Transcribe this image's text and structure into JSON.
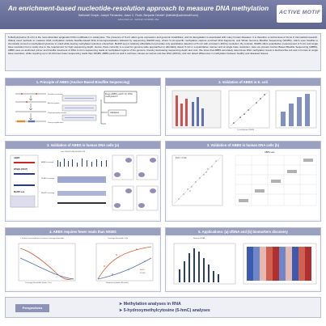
{
  "header": {
    "title": "An enrichment-based nucleotide-resolution approach to measure DNA methylation",
    "authors": "Nathaniel Chapin, Joseph Fernandez, Jason C. Poole, Benjamin Delatte* (bdelatte@activemotif.com)",
    "affiliation": "Active Motif, Inc., Carlsbad, CA 92008, USA",
    "logo_text": "ACTIVE MOTIF",
    "colors": {
      "header": "#6b7199",
      "panel_title": "#9aa0c0",
      "accent": "#e08a2e"
    }
  },
  "abstract": "5-Methylcytosine (5-mC) is the most abundant epigenetic DNA modification in eukaryotes. The presence of 5-mC alters gene expression and genomic instabilities, and its deregulation is associated with many human diseases. It is therefore a central area of focus in biomedical research. Widely used methods to measure DNA methylation include bisulfite-based DNA immunoprecipitation followed by sequencing (MeDIP-seq), where 5-mC-specific methylation capture enriched DNA fragments, and Whole Genome Bisulfite Sequencing (WGBS), which uses bisulfite to chemically convert unmethylated cytosines to uracil while leaving methylated cytosines untouched. MeDIP-seq is relatively affordable but provides only quantitative detection of 5-mC with a limited 1-300 bp resolution. By contrast, WGBS offers quantitative measurement of 5-mC and single base resolution but is costly due to the requirement for high sequencing depth. Hence, there currently is a need for genome-wide approaches to affordably detect 5-mC in a quantitative manner and at single base resolution. Here we present Anchor-Based Bisulfite Sequencing (ABBS), ABBS uses an anchored primer and bisulfite treatment of DNA to form sequencing reads at methylated regions of the genome, thereby decreasing sequencing depth and cost. We show that ABBS accurately determines DNA methylation levels in Escherichia coli and in human at single base resolution, while requiring up to 10-20-times fewer sequencing reads than WGBS. ABBS performs well in cell lines, tissues as well as cell-free DNA (cfDNA), and can detect differences in methylation between healthy and diseased tissues.",
  "panels": {
    "p1": {
      "title": "1. Principle of ABBS (Anchor-Based Bisulfite Sequencing)",
      "question": "Does ABBS enrich for DNA methylation?",
      "validation": "Validation",
      "steps": [
        "Bisulfite conversion",
        "Anchor ligation",
        "Oligonucleotide priming",
        "Library amplification"
      ]
    },
    "p2": {
      "title": "2. Validation of ABBS in E. coli",
      "axis_x": "% methylation WGBS",
      "axis_y": "% methylation ABBS"
    },
    "p3": {
      "title": "3. Validation of ABBS in human DNA cells (a)",
      "locus": "chr1:169,847,068-169,895,798",
      "labels": [
        "ABBS",
        "WGBS (FRAT)",
        "MeDIP-seq"
      ],
      "track_labels": [
        "ABBS coverage",
        "WGBS coverage",
        "MeDIP coverage"
      ]
    },
    "p4": {
      "title": "3. Validation of ABBS in human DNA cells (b)",
      "rvals": [
        "PCC = 0.94",
        "PCC = 0.93"
      ],
      "panel_label": "ABBS sets"
    },
    "p5": {
      "title": "4. ABBS requires fewer reads than WGBS",
      "left_title": "# of total, increased ratio of various coverage thresholds",
      "left_x": "Coverage thresholds (reads, 10x)",
      "right_title": "Coverage threshold = 10x",
      "right_x": "Sequencing depth (M reads)",
      "legend": [
        "ABBS",
        "WGBS"
      ]
    },
    "p6": {
      "title": "5. Applications: (a) cfDNA and (b) biomarkers discovery",
      "subtitle": "Human cfDNA"
    }
  },
  "perspectives": {
    "label": "Perspectives",
    "items": [
      "Methylation analyses in RNA",
      "5-hydroxymethylcytosine (5-hmC) analyses"
    ]
  }
}
